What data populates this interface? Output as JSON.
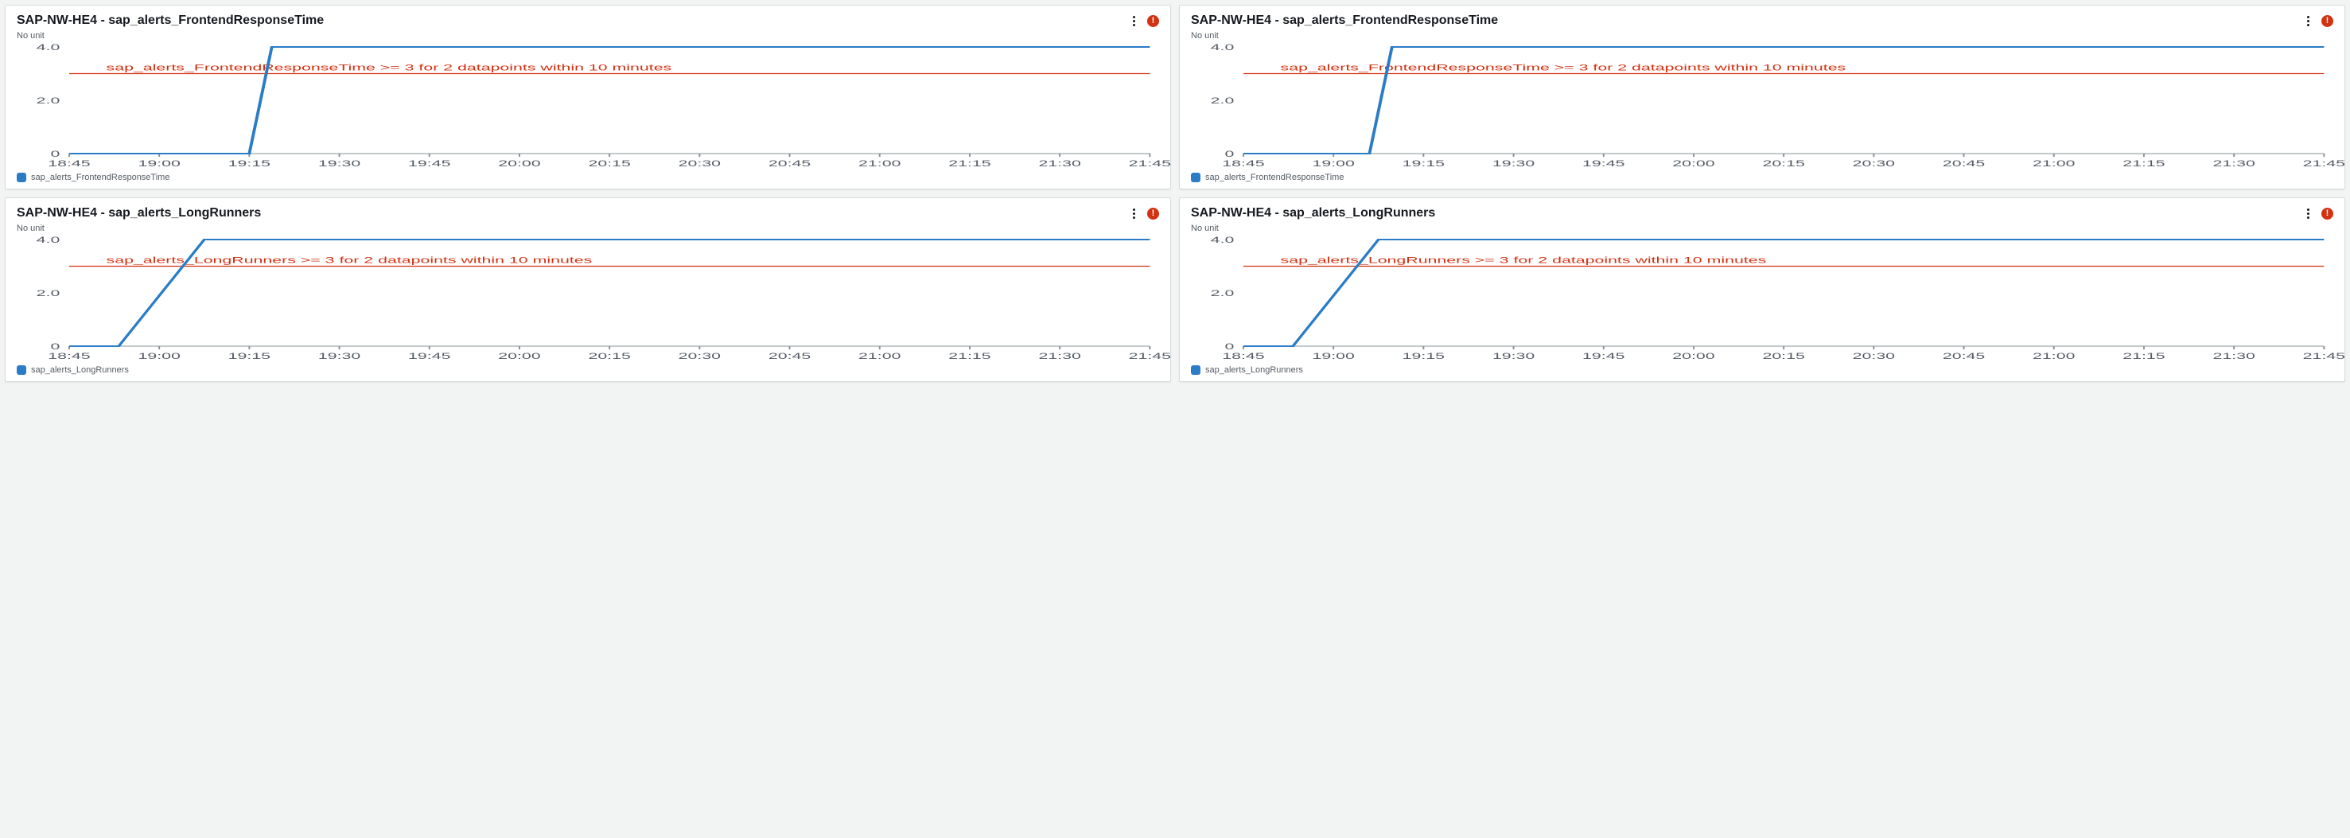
{
  "background_color": "#f2f3f3",
  "panel_bg": "#ffffff",
  "panel_border": "#d5dbdb",
  "axis_color": "#879196",
  "axis_label_color": "#545b64",
  "panels": [
    {
      "title": "SAP-NW-HE4 - sap_alerts_FrontendResponseTime",
      "y_subtitle": "No unit",
      "kebab": "⋮",
      "alert_glyph": "!",
      "chart": {
        "type": "line",
        "x_categories": [
          "18:45",
          "19:00",
          "19:15",
          "19:30",
          "19:45",
          "20:00",
          "20:15",
          "20:30",
          "20:45",
          "21:00",
          "21:15",
          "21:30",
          "21:45"
        ],
        "ylim": [
          0,
          4.0
        ],
        "yticks": [
          0,
          2.0,
          4.0
        ],
        "line_color": "#2a7cc7",
        "line_width": 2,
        "points": [
          [
            0,
            0
          ],
          [
            1,
            0
          ],
          [
            2,
            0
          ],
          [
            2.25,
            4.0
          ],
          [
            12,
            4.0
          ]
        ],
        "threshold": {
          "value": 3.0,
          "color": "#d13212",
          "label": "sap_alerts_FrontendResponseTime >= 3 for 2 datapoints within 10 minutes"
        },
        "legend": {
          "swatch_color": "#2a7cc7",
          "label": "sap_alerts_FrontendResponseTime"
        }
      }
    },
    {
      "title": "SAP-NW-HE4 - sap_alerts_FrontendResponseTime",
      "y_subtitle": "No unit",
      "kebab": "⋮",
      "alert_glyph": "!",
      "chart": {
        "type": "line",
        "x_categories": [
          "18:45",
          "19:00",
          "19:15",
          "19:30",
          "19:45",
          "20:00",
          "20:15",
          "20:30",
          "20:45",
          "21:00",
          "21:15",
          "21:30",
          "21:45"
        ],
        "ylim": [
          0,
          4.0
        ],
        "yticks": [
          0,
          2.0,
          4.0
        ],
        "line_color": "#2a7cc7",
        "line_width": 2,
        "points": [
          [
            0,
            0
          ],
          [
            1,
            0
          ],
          [
            1.4,
            0
          ],
          [
            1.65,
            4.0
          ],
          [
            12,
            4.0
          ]
        ],
        "threshold": {
          "value": 3.0,
          "color": "#d13212",
          "label": "sap_alerts_FrontendResponseTime >= 3 for 2 datapoints within 10 minutes"
        },
        "legend": {
          "swatch_color": "#2a7cc7",
          "label": "sap_alerts_FrontendResponseTime"
        }
      }
    },
    {
      "title": "SAP-NW-HE4 - sap_alerts_LongRunners",
      "y_subtitle": "No unit",
      "kebab": "⋮",
      "alert_glyph": "!",
      "chart": {
        "type": "line",
        "x_categories": [
          "18:45",
          "19:00",
          "19:15",
          "19:30",
          "19:45",
          "20:00",
          "20:15",
          "20:30",
          "20:45",
          "21:00",
          "21:15",
          "21:30",
          "21:45"
        ],
        "ylim": [
          0,
          4.0
        ],
        "yticks": [
          0,
          2.0,
          4.0
        ],
        "line_color": "#2a7cc7",
        "line_width": 2,
        "points": [
          [
            0,
            0
          ],
          [
            0.55,
            0
          ],
          [
            1.5,
            4.0
          ],
          [
            12,
            4.0
          ]
        ],
        "threshold": {
          "value": 3.0,
          "color": "#d13212",
          "label": "sap_alerts_LongRunners >= 3 for 2 datapoints within 10 minutes"
        },
        "legend": {
          "swatch_color": "#2a7cc7",
          "label": "sap_alerts_LongRunners"
        }
      }
    },
    {
      "title": "SAP-NW-HE4 - sap_alerts_LongRunners",
      "y_subtitle": "No unit",
      "kebab": "⋮",
      "alert_glyph": "!",
      "chart": {
        "type": "line",
        "x_categories": [
          "18:45",
          "19:00",
          "19:15",
          "19:30",
          "19:45",
          "20:00",
          "20:15",
          "20:30",
          "20:45",
          "21:00",
          "21:15",
          "21:30",
          "21:45"
        ],
        "ylim": [
          0,
          4.0
        ],
        "yticks": [
          0,
          2.0,
          4.0
        ],
        "line_color": "#2a7cc7",
        "line_width": 2,
        "points": [
          [
            0,
            0
          ],
          [
            0.55,
            0
          ],
          [
            1.5,
            4.0
          ],
          [
            12,
            4.0
          ]
        ],
        "threshold": {
          "value": 3.0,
          "color": "#d13212",
          "label": "sap_alerts_LongRunners >= 3 for 2 datapoints within 10 minutes"
        },
        "legend": {
          "swatch_color": "#2a7cc7",
          "label": "sap_alerts_LongRunners"
        }
      }
    }
  ]
}
